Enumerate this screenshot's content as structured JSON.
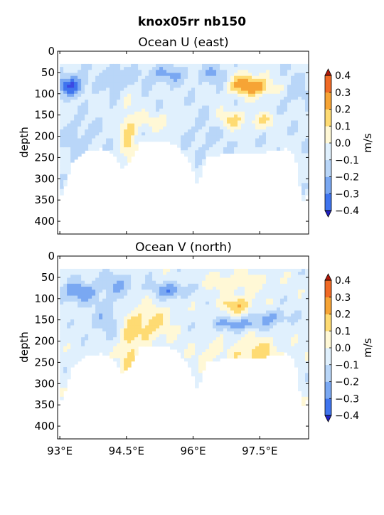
{
  "figure": {
    "suptitle": "knox05rr nb150"
  },
  "colors": {
    "levels": [
      -0.4,
      -0.3,
      -0.2,
      -0.1,
      0,
      0.1,
      0.2,
      0.3,
      0.4
    ],
    "bins": [
      "#3b49e3",
      "#3f74ee",
      "#7aa8f2",
      "#b9d6f8",
      "#e0f0fd",
      "#fff8d6",
      "#fedb73",
      "#f6a435",
      "#f06a25",
      "#c41b10"
    ],
    "under": "#2020c0",
    "over": "#b01a0a"
  },
  "chart_data": [
    {
      "type": "heatmap",
      "title": "Ocean U (east)",
      "ylabel": "depth",
      "xlabel": "",
      "xlim": [
        92.95,
        98.6
      ],
      "ylim": [
        430,
        0
      ],
      "yticks": [
        "0",
        "50",
        "100",
        "150",
        "200",
        "250",
        "300",
        "350",
        "400"
      ],
      "xticks": [
        "93°E",
        "94.5°E",
        "96°E",
        "97.5°E"
      ],
      "xticks_visible": false,
      "colorbar": {
        "label": "m/s",
        "ticks": [
          "0.4",
          "0.3",
          "0.2",
          "0.1",
          "0.0",
          "−0.1",
          "−0.2",
          "−0.3",
          "−0.4"
        ]
      },
      "depth_top": 30,
      "grid": false
    },
    {
      "type": "heatmap",
      "title": "Ocean V (north)",
      "ylabel": "depth",
      "xlabel": "",
      "xlim": [
        92.95,
        98.6
      ],
      "ylim": [
        430,
        0
      ],
      "yticks": [
        "0",
        "50",
        "100",
        "150",
        "200",
        "250",
        "300",
        "350",
        "400"
      ],
      "xticks": [
        "93°E",
        "94.5°E",
        "96°E",
        "97.5°E"
      ],
      "xticks_visible": true,
      "colorbar": {
        "label": "m/s",
        "ticks": [
          "0.4",
          "0.3",
          "0.2",
          "0.1",
          "0.0",
          "−0.1",
          "−0.2",
          "−0.3",
          "−0.4"
        ]
      },
      "depth_top": 30,
      "grid": false
    }
  ]
}
